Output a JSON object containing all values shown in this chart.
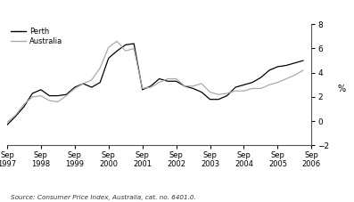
{
  "ylabel_right": "%",
  "source_text": "Source: Consumer Price Index, Australia, cat. no. 6401.0.",
  "legend": [
    "Perth",
    "Australia"
  ],
  "legend_colors": [
    "#000000",
    "#aaaaaa"
  ],
  "xlim_start": 0,
  "xlim_end": 36,
  "ylim": [
    -2,
    8
  ],
  "yticks": [
    -2,
    0,
    2,
    4,
    6,
    8
  ],
  "xtick_labels": [
    "Sep\n1997",
    "Sep\n1998",
    "Sep\n1999",
    "Sep\n2000",
    "Sep\n2001",
    "Sep\n2002",
    "Sep\n2003",
    "Sep\n2004",
    "Sep\n2005",
    "Sep\n2006"
  ],
  "xtick_positions": [
    0,
    4,
    8,
    12,
    16,
    20,
    24,
    28,
    32,
    36
  ],
  "perth": [
    -0.3,
    0.4,
    1.2,
    2.3,
    2.6,
    2.1,
    2.1,
    2.2,
    2.8,
    3.1,
    2.8,
    3.2,
    5.2,
    5.8,
    6.3,
    6.4,
    2.6,
    2.9,
    3.5,
    3.3,
    3.3,
    2.9,
    2.7,
    2.4,
    1.8,
    1.8,
    2.1,
    2.8,
    3.0,
    3.2,
    3.6,
    4.2,
    4.5,
    4.6,
    4.8,
    5.0
  ],
  "australia": [
    -0.1,
    0.5,
    1.4,
    2.0,
    2.1,
    1.7,
    1.6,
    2.1,
    2.7,
    3.1,
    3.4,
    4.4,
    6.1,
    6.6,
    5.8,
    6.0,
    2.7,
    2.8,
    3.2,
    3.5,
    3.5,
    2.9,
    2.9,
    3.1,
    2.4,
    2.2,
    2.3,
    2.5,
    2.5,
    2.7,
    2.7,
    3.0,
    3.2,
    3.5,
    3.8,
    4.2
  ]
}
